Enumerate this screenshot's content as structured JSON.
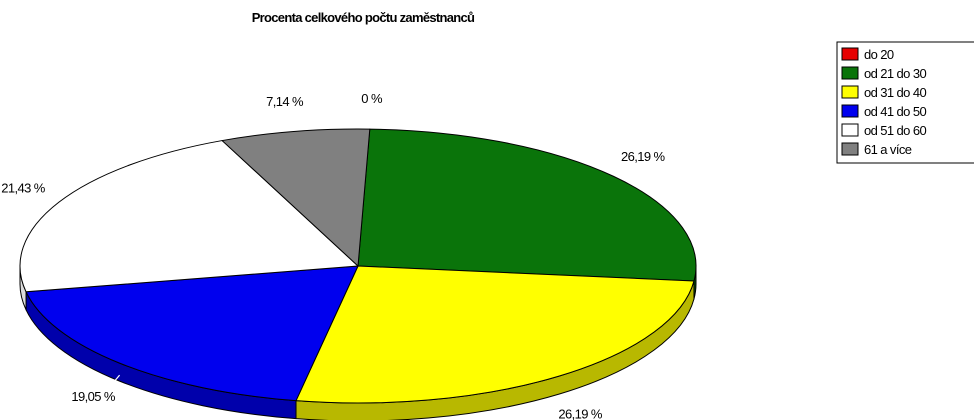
{
  "chart_data": {
    "type": "pie",
    "title": "Procenta celkového počtu zaměstnanců",
    "three_d": true,
    "legend_position": "top-right",
    "categories": [
      "do 20",
      "od 21 do 30",
      "od 31 do 40",
      "od 41 do 50",
      "od 51 do 60",
      "61 a více"
    ],
    "values": [
      0,
      26.19,
      26.19,
      19.05,
      21.43,
      7.14
    ],
    "labels": [
      "0 %",
      "26,19 %",
      "26,19 %",
      "19,05 %",
      "21,43 %",
      "7,14 %"
    ],
    "colors": [
      "#e60000",
      "#0a740a",
      "#ffff00",
      "#0000ee",
      "#ffffff",
      "#808080"
    ]
  }
}
